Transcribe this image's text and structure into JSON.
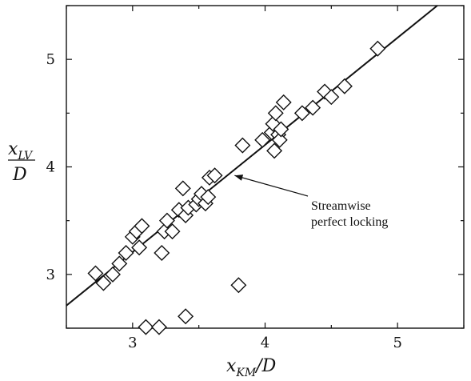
{
  "chart_data": {
    "type": "scatter",
    "title": "",
    "xlabel": {
      "main": "x",
      "sub": "KM",
      "suffix": "/D"
    },
    "ylabel": {
      "main": "x",
      "sub": "LV",
      "denominator": "D"
    },
    "xlim": [
      2.5,
      5.5
    ],
    "ylim": [
      2.5,
      5.5
    ],
    "xticks": [
      3,
      4,
      5
    ],
    "yticks": [
      3,
      4,
      5
    ],
    "xtick_labels": [
      "3",
      "4",
      "5"
    ],
    "ytick_labels": [
      "3",
      "4",
      "5"
    ],
    "grid": false,
    "marker": "open-diamond",
    "points": [
      [
        2.72,
        3.01
      ],
      [
        2.78,
        2.92
      ],
      [
        2.85,
        3.0
      ],
      [
        2.9,
        3.1
      ],
      [
        2.95,
        3.2
      ],
      [
        3.0,
        3.35
      ],
      [
        3.03,
        3.4
      ],
      [
        3.05,
        3.25
      ],
      [
        3.07,
        3.45
      ],
      [
        3.22,
        3.2
      ],
      [
        3.24,
        3.4
      ],
      [
        3.26,
        3.5
      ],
      [
        3.3,
        3.4
      ],
      [
        3.35,
        3.6
      ],
      [
        3.38,
        3.8
      ],
      [
        3.4,
        3.55
      ],
      [
        3.42,
        3.62
      ],
      [
        3.48,
        3.65
      ],
      [
        3.5,
        3.7
      ],
      [
        3.52,
        3.75
      ],
      [
        3.55,
        3.66
      ],
      [
        3.57,
        3.72
      ],
      [
        3.58,
        3.9
      ],
      [
        3.62,
        3.92
      ],
      [
        3.83,
        4.2
      ],
      [
        3.98,
        4.25
      ],
      [
        4.05,
        4.32
      ],
      [
        4.06,
        4.4
      ],
      [
        4.07,
        4.15
      ],
      [
        4.08,
        4.5
      ],
      [
        4.1,
        4.3
      ],
      [
        4.11,
        4.25
      ],
      [
        4.12,
        4.35
      ],
      [
        4.14,
        4.6
      ],
      [
        4.28,
        4.5
      ],
      [
        4.36,
        4.55
      ],
      [
        4.45,
        4.7
      ],
      [
        4.5,
        4.65
      ],
      [
        4.6,
        4.75
      ],
      [
        4.85,
        5.1
      ],
      [
        3.8,
        2.9
      ],
      [
        3.4,
        2.61
      ],
      [
        3.1,
        2.51
      ],
      [
        3.2,
        2.51
      ]
    ],
    "series": [
      {
        "type": "line",
        "x": [
          2.5,
          5.3
        ],
        "y": [
          2.71,
          5.5
        ]
      }
    ],
    "annotation": {
      "lines": [
        "Streamwise",
        "perfect locking"
      ],
      "arrow_target": [
        3.77,
        3.92
      ]
    }
  }
}
